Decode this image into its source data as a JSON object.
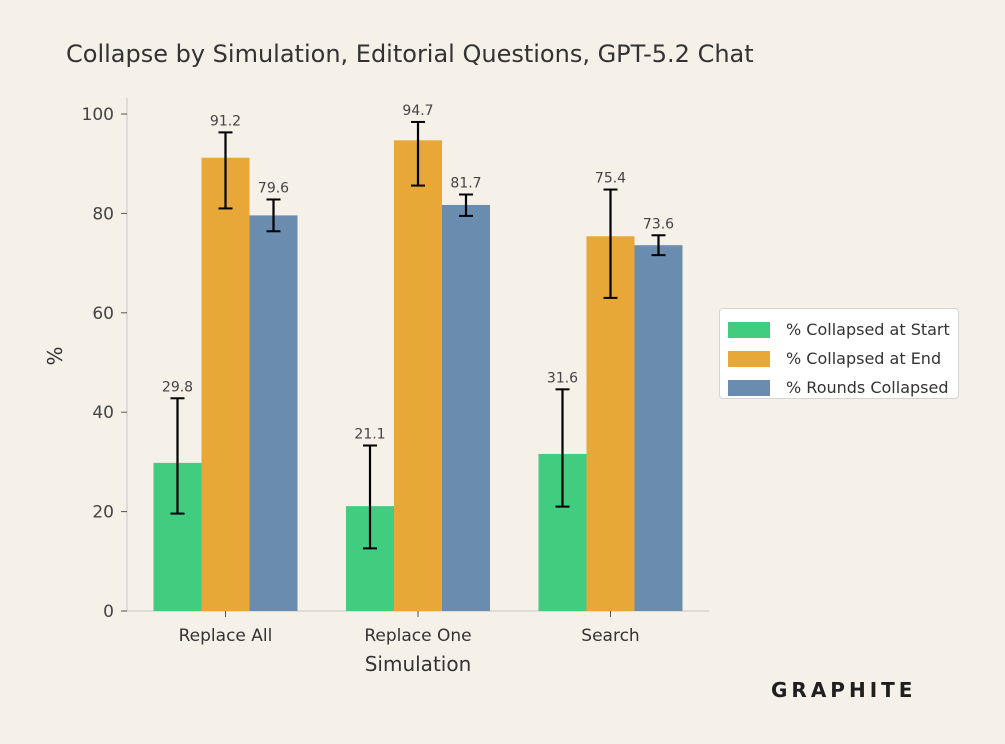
{
  "chart_data": {
    "type": "bar",
    "title": "Collapse by Simulation, Editorial Questions, GPT-5.2 Chat",
    "xlabel": "Simulation",
    "ylabel": "%",
    "categories": [
      "Replace All",
      "Replace One",
      "Search"
    ],
    "ylim": [
      0,
      103
    ],
    "yticks": [
      "0",
      "20",
      "40",
      "60",
      "80",
      "100"
    ],
    "grid": false,
    "legend_position": "right",
    "series": [
      {
        "name": "% Collapsed at Start",
        "color": "#42cc80",
        "values": [
          29.8,
          21.1,
          31.6
        ],
        "labels": [
          "29.8",
          "21.1",
          "31.6"
        ],
        "err_low": [
          19.6,
          12.6,
          21.0
        ],
        "err_high": [
          42.8,
          33.3,
          44.6
        ]
      },
      {
        "name": "% Collapsed at End",
        "color": "#e8a838",
        "values": [
          91.2,
          94.7,
          75.4
        ],
        "labels": [
          "91.2",
          "94.7",
          "75.4"
        ],
        "err_low": [
          81.0,
          85.6,
          63.0
        ],
        "err_high": [
          96.3,
          98.4,
          84.8
        ]
      },
      {
        "name": "% Rounds Collapsed",
        "color": "#6a8caf",
        "values": [
          79.6,
          81.7,
          73.6
        ],
        "labels": [
          "79.6",
          "81.7",
          "73.6"
        ],
        "err_low": [
          76.4,
          79.5,
          71.6
        ],
        "err_high": [
          82.8,
          83.8,
          75.6
        ]
      }
    ]
  },
  "brand": "GRAPHITE"
}
